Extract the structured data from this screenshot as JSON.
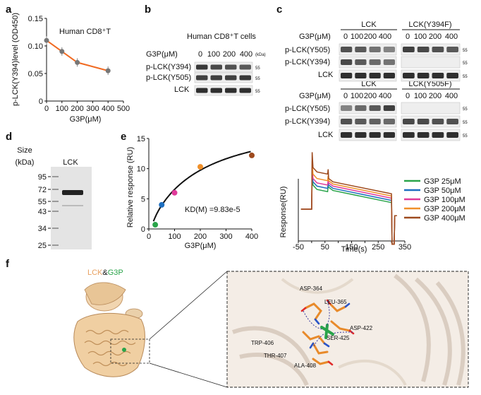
{
  "panel_letters": {
    "a": "a",
    "b": "b",
    "c": "c",
    "d": "d",
    "e": "e",
    "f": "f"
  },
  "panel_a": {
    "label": "Human CD8⁺T",
    "ylabel": "p-LCK(Y394)level (OD450)",
    "xlabel": "G3P(μM)",
    "line_color": "#f06a22"
  },
  "panel_b": {
    "title": "Human CD8⁺T cells",
    "conc_label": "G3P(μM)",
    "concs": [
      "0",
      "100",
      "200",
      "400"
    ],
    "kda": "(kDa)",
    "rows": [
      "p-LCK(Y394)",
      "p-LCK(Y505)",
      "LCK"
    ],
    "mw": "55"
  },
  "panel_c": {
    "lck": "LCK",
    "lck_y394f": "LCK(Y394F)",
    "lck_y505f": "LCK(Y505F)",
    "conc_label": "G3P(μM)",
    "concs": [
      "0",
      "100",
      "200",
      "400"
    ],
    "rows_top": [
      "p-LCK(Y505)",
      "p-LCK(Y394)",
      "LCK"
    ],
    "rows_bottom": [
      "p-LCK(Y505)",
      "p-LCK(Y394)",
      "LCK"
    ],
    "mw": "55"
  },
  "panel_d": {
    "size_label": "Size",
    "kda_label": "(kDa)",
    "lane": "LCK",
    "markers": [
      "95",
      "72",
      "55",
      "43",
      "34",
      "25"
    ]
  },
  "panel_e": {
    "kd_text": "KD(M) =9.83e-5",
    "left_ylabel": "Relative response (RU)",
    "left_xlabel": "G3P(μM)",
    "right_ylabel": "Response(RU)",
    "right_xlabel": "Time(s)",
    "legend": [
      {
        "name": "G3P 25μM",
        "color": "#2aa44a"
      },
      {
        "name": "G3P 50μM",
        "color": "#1f6fc0"
      },
      {
        "name": "G3P 100μM",
        "color": "#e03a9a"
      },
      {
        "name": "G3P 200μM",
        "color": "#f0902a"
      },
      {
        "name": "G3P 400μM",
        "color": "#9e4a1e"
      }
    ]
  },
  "panel_f": {
    "title_lck": "LCK",
    "title_amp": "&",
    "title_g3p": "G3P",
    "residues": [
      "ASP-364",
      "LEU-365",
      "ASP-422",
      "SER-425",
      "TRP-406",
      "THR-407",
      "ALA-408"
    ]
  },
  "chart_data": [
    {
      "type": "line",
      "xlabel": "G3P(μM)",
      "ylabel": "p-LCK(Y394)level (OD450)",
      "xlim": [
        0,
        500
      ],
      "ylim": [
        0,
        0.15
      ],
      "xticks": [
        "0",
        "100",
        "200",
        "300",
        "400",
        "500"
      ],
      "yticks": [
        "0",
        "0.05",
        "0.10",
        "0.15"
      ],
      "x": [
        0,
        100,
        200,
        400
      ],
      "series": [
        {
          "values": [
            0.11,
            0.09,
            0.07,
            0.055
          ]
        }
      ]
    },
    {
      "type": "scatter",
      "xlabel": "G3P(μM)",
      "ylabel": "Relative response (RU)",
      "xlim": [
        0,
        400
      ],
      "ylim": [
        0,
        15
      ],
      "xticks": [
        "0",
        "100",
        "200",
        "300",
        "400"
      ],
      "yticks": [
        "0",
        "5",
        "10",
        "15"
      ],
      "x": [
        25,
        50,
        100,
        200,
        400
      ],
      "values": [
        0.7,
        4.0,
        6.0,
        10.3,
        12.2
      ],
      "colors": [
        "#2aa44a",
        "#1f6fc0",
        "#e03a9a",
        "#f0902a",
        "#9e4a1e"
      ],
      "fit_curve": true
    },
    {
      "type": "line",
      "xlabel": "Time(s)",
      "ylabel": "Response(RU)",
      "xlim": [
        -50,
        350
      ],
      "xticks": [
        "-50",
        "0",
        "50",
        "100",
        "150",
        "200",
        "250",
        "300",
        "350"
      ],
      "series": [
        {
          "name": "G3P 25μM",
          "peak": 15,
          "plateau": 9,
          "end": 7
        },
        {
          "name": "G3P 50μM",
          "peak": 17,
          "plateau": 10.5,
          "end": 8
        },
        {
          "name": "G3P 100μM",
          "peak": 19,
          "plateau": 12,
          "end": 9
        },
        {
          "name": "G3P 200μM",
          "peak": 22,
          "plateau": 14,
          "end": 10
        },
        {
          "name": "G3P 400μM",
          "peak": 26,
          "plateau": 17,
          "end": 11
        }
      ]
    }
  ]
}
